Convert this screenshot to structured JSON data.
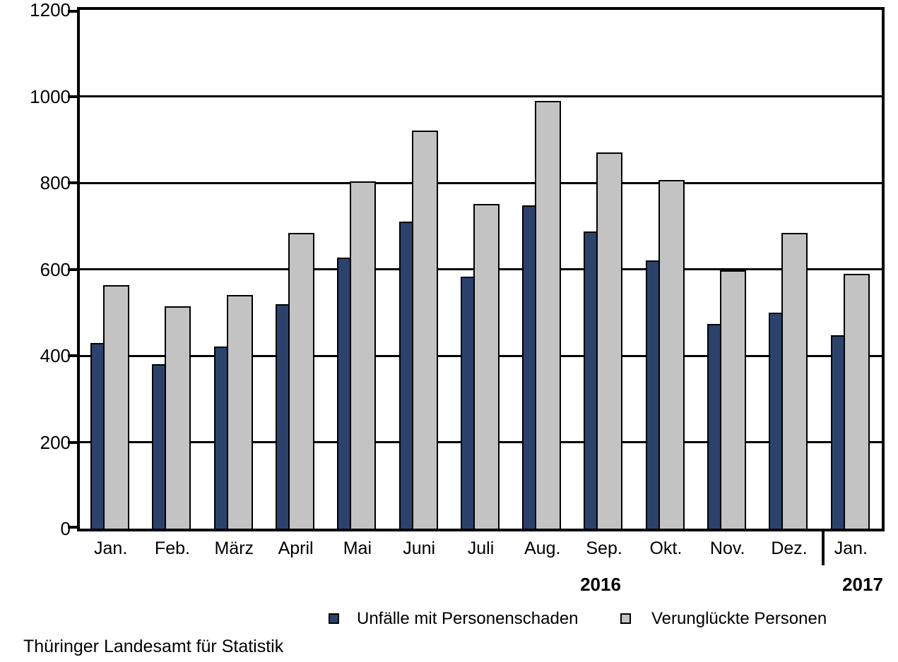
{
  "chart_data": {
    "type": "bar",
    "title": "",
    "categories": [
      "Jan.",
      "Feb.",
      "März",
      "April",
      "Mai",
      "Juni",
      "Juli",
      "Aug.",
      "Sep.",
      "Okt.",
      "Nov.",
      "Dez.",
      "Jan."
    ],
    "series": [
      {
        "name": "Unfälle mit Personenschaden",
        "color": "#2b436c",
        "values": [
          430,
          381,
          421,
          520,
          627,
          710,
          583,
          748,
          687,
          620,
          474,
          500,
          448
        ]
      },
      {
        "name": "Verunglückte Personen",
        "color": "#c3c3c3",
        "values": [
          563,
          515,
          541,
          684,
          804,
          921,
          751,
          989,
          871,
          807,
          598,
          684,
          590
        ]
      }
    ],
    "ylim": [
      0,
      1200
    ],
    "yticks": [
      0,
      200,
      400,
      600,
      800,
      1000,
      1200
    ],
    "grid": true,
    "legend_position": "bottom",
    "axis_group_labels": {
      "left_year": "2016",
      "right_year": "2017"
    },
    "year_split_after_index": 11,
    "source": "Thüringer Landesamt für Statistik",
    "xlabel": "",
    "ylabel": ""
  }
}
